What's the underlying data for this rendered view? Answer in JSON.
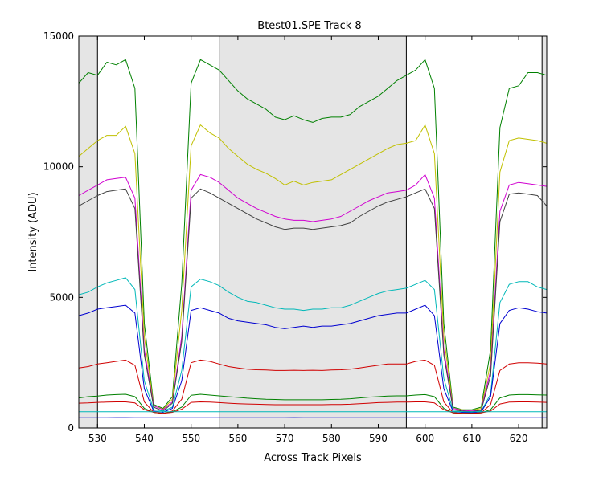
{
  "chart_data": {
    "type": "line",
    "title": "Btest01.SPE    Track 8",
    "xlabel": "Across Track Pixels",
    "ylabel": "Intensity (ADU)",
    "xlim": [
      526,
      626
    ],
    "ylim": [
      0,
      15000
    ],
    "x_ticks": [
      530,
      540,
      550,
      560,
      570,
      580,
      590,
      600,
      610,
      620
    ],
    "y_ticks": [
      0,
      5000,
      10000,
      15000
    ],
    "grid": false,
    "legend": "none",
    "shaded_regions": [
      {
        "x0": 526,
        "x1": 530,
        "color": "#e5e5e5"
      },
      {
        "x0": 556,
        "x1": 596,
        "color": "#e5e5e5"
      },
      {
        "x0": 625,
        "x1": 626,
        "color": "#e5e5e5"
      }
    ],
    "vertical_lines": [
      530,
      556,
      596,
      625
    ],
    "x": [
      526,
      528,
      530,
      532,
      534,
      536,
      538,
      540,
      542,
      544,
      546,
      548,
      550,
      552,
      554,
      556,
      558,
      560,
      562,
      564,
      566,
      568,
      570,
      572,
      574,
      576,
      578,
      580,
      582,
      584,
      586,
      588,
      590,
      592,
      594,
      596,
      598,
      600,
      602,
      604,
      606,
      608,
      610,
      612,
      614,
      616,
      618,
      620,
      622,
      624,
      626
    ],
    "series": [
      {
        "color": "#008000",
        "values": [
          13200,
          13600,
          13500,
          14000,
          13900,
          14100,
          13000,
          4000,
          900,
          750,
          1200,
          5500,
          13200,
          14100,
          13900,
          13700,
          13300,
          12900,
          12600,
          12400,
          12200,
          11900,
          11800,
          11950,
          11800,
          11700,
          11850,
          11900,
          11900,
          12000,
          12300,
          12500,
          12700,
          13000,
          13300,
          13500,
          13700,
          14100,
          13000,
          4000,
          800,
          700,
          700,
          800,
          3000,
          11500,
          13000,
          13100,
          13600,
          13600,
          13500
        ]
      },
      {
        "color": "#c0c000",
        "values": [
          10400,
          10700,
          11000,
          11200,
          11200,
          11550,
          10500,
          3500,
          850,
          720,
          1100,
          4500,
          10800,
          11600,
          11300,
          11100,
          10700,
          10400,
          10100,
          9900,
          9750,
          9550,
          9300,
          9450,
          9300,
          9400,
          9450,
          9500,
          9700,
          9900,
          10100,
          10300,
          10500,
          10700,
          10850,
          10900,
          11000,
          11600,
          10500,
          3500,
          750,
          700,
          680,
          750,
          2500,
          9800,
          11000,
          11100,
          11050,
          11000,
          10900
        ]
      },
      {
        "color": "#d000d0",
        "values": [
          8900,
          9100,
          9300,
          9500,
          9550,
          9600,
          8800,
          3000,
          850,
          700,
          1000,
          3500,
          9100,
          9700,
          9600,
          9400,
          9100,
          8800,
          8600,
          8400,
          8250,
          8100,
          8000,
          7950,
          7950,
          7900,
          7950,
          8000,
          8100,
          8300,
          8500,
          8700,
          8850,
          9000,
          9050,
          9100,
          9300,
          9700,
          8800,
          3000,
          750,
          680,
          650,
          700,
          2200,
          8300,
          9300,
          9400,
          9350,
          9300,
          9250
        ]
      },
      {
        "color": "#404040",
        "values": [
          8500,
          8700,
          8900,
          9050,
          9100,
          9150,
          8400,
          2800,
          800,
          650,
          950,
          3300,
          8800,
          9150,
          9000,
          8800,
          8600,
          8400,
          8200,
          8000,
          7850,
          7700,
          7600,
          7650,
          7650,
          7600,
          7650,
          7700,
          7750,
          7850,
          8100,
          8300,
          8500,
          8650,
          8750,
          8850,
          9000,
          9150,
          8400,
          2800,
          700,
          650,
          620,
          680,
          2000,
          7900,
          8950,
          9000,
          8950,
          8900,
          8500
        ]
      },
      {
        "color": "#00b8b8",
        "values": [
          5100,
          5200,
          5400,
          5550,
          5650,
          5750,
          5300,
          1800,
          700,
          650,
          800,
          2200,
          5400,
          5700,
          5600,
          5450,
          5200,
          5000,
          4850,
          4800,
          4700,
          4600,
          4550,
          4550,
          4500,
          4550,
          4550,
          4600,
          4600,
          4700,
          4850,
          5000,
          5150,
          5250,
          5300,
          5350,
          5500,
          5650,
          5300,
          1900,
          650,
          620,
          600,
          650,
          1300,
          4800,
          5500,
          5600,
          5600,
          5400,
          5300
        ]
      },
      {
        "color": "#0000d0",
        "values": [
          4300,
          4400,
          4550,
          4600,
          4650,
          4700,
          4400,
          1500,
          650,
          600,
          750,
          1800,
          4500,
          4600,
          4500,
          4400,
          4200,
          4100,
          4050,
          4000,
          3950,
          3850,
          3800,
          3850,
          3900,
          3850,
          3900,
          3900,
          3950,
          4000,
          4100,
          4200,
          4300,
          4350,
          4400,
          4400,
          4550,
          4700,
          4300,
          1500,
          620,
          600,
          580,
          620,
          1200,
          4000,
          4500,
          4600,
          4550,
          4450,
          4400
        ]
      },
      {
        "color": "#d00000",
        "values": [
          2300,
          2350,
          2450,
          2500,
          2550,
          2600,
          2400,
          1000,
          600,
          550,
          650,
          1100,
          2500,
          2600,
          2550,
          2450,
          2350,
          2300,
          2250,
          2230,
          2220,
          2200,
          2200,
          2210,
          2200,
          2210,
          2200,
          2220,
          2230,
          2250,
          2300,
          2350,
          2400,
          2450,
          2450,
          2450,
          2550,
          2600,
          2400,
          1000,
          580,
          560,
          550,
          580,
          900,
          2200,
          2450,
          2500,
          2500,
          2480,
          2450
        ]
      },
      {
        "color": "#008000",
        "values": [
          1150,
          1200,
          1220,
          1260,
          1280,
          1290,
          1200,
          750,
          600,
          560,
          620,
          800,
          1250,
          1290,
          1260,
          1230,
          1200,
          1170,
          1140,
          1120,
          1100,
          1090,
          1080,
          1080,
          1080,
          1080,
          1080,
          1090,
          1100,
          1120,
          1150,
          1180,
          1200,
          1220,
          1230,
          1230,
          1260,
          1280,
          1200,
          750,
          580,
          560,
          560,
          580,
          700,
          1150,
          1260,
          1280,
          1280,
          1270,
          1260
        ]
      },
      {
        "color": "#d00000",
        "values": [
          950,
          960,
          980,
          990,
          1000,
          1000,
          960,
          700,
          600,
          560,
          600,
          720,
          980,
          1000,
          990,
          970,
          950,
          930,
          920,
          910,
          900,
          890,
          890,
          890,
          890,
          890,
          890,
          900,
          900,
          910,
          930,
          950,
          970,
          980,
          990,
          990,
          1000,
          1000,
          960,
          700,
          580,
          560,
          560,
          580,
          650,
          920,
          990,
          1000,
          1000,
          990,
          980
        ]
      },
      {
        "color": "#00b8b8",
        "values": [
          620,
          620,
          620,
          620,
          620,
          620,
          620,
          620,
          620,
          620,
          620,
          620,
          620,
          620,
          620,
          620,
          620,
          620,
          620,
          620,
          620,
          620,
          620,
          620,
          620,
          620,
          620,
          620,
          620,
          620,
          620,
          620,
          620,
          620,
          620,
          620,
          620,
          620,
          620,
          620,
          620,
          620,
          620,
          620,
          620,
          620,
          620,
          620,
          620,
          620,
          620
        ]
      },
      {
        "color": "#0000d0",
        "values": [
          390,
          390,
          390,
          390,
          395,
          395,
          390,
          390,
          390,
          390,
          390,
          390,
          390,
          390,
          390,
          390,
          390,
          390,
          390,
          390,
          390,
          390,
          390,
          395,
          390,
          390,
          390,
          390,
          390,
          390,
          390,
          390,
          390,
          390,
          390,
          390,
          390,
          390,
          390,
          390,
          390,
          390,
          390,
          390,
          390,
          390,
          390,
          390,
          390,
          390,
          390
        ]
      }
    ]
  }
}
